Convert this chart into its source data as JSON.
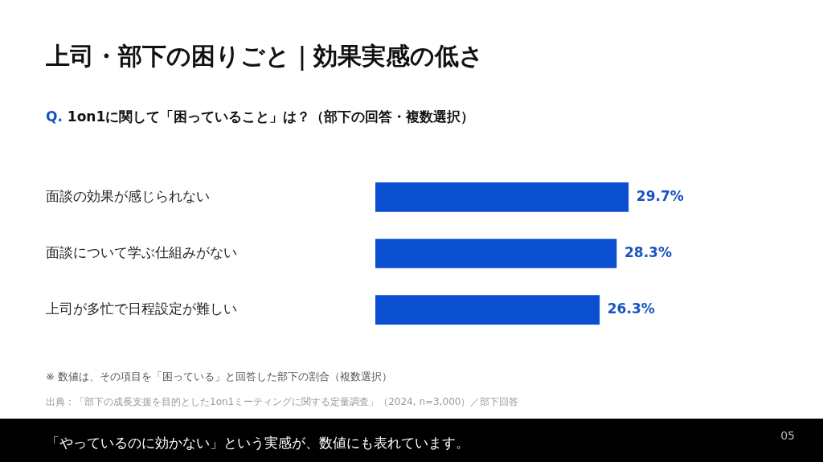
{
  "chart_data": {
    "type": "bar",
    "orientation": "horizontal",
    "title": "上司・部下の困りごと｜効果実感の低さ",
    "subtitle": "Q. 1on1に関して「困っていること」は？（部下の回答・複数選択）",
    "categories": [
      "面談の効果が感じられない",
      "面談について学ぶ仕組みがない",
      "上司が多忙で日程設定が難しい"
    ],
    "values": [
      29.7,
      28.3,
      26.3
    ],
    "color": "#0b4fd1",
    "value_labels": [
      "29.7%",
      "28.3%",
      "26.3%"
    ],
    "tick_labels": "y",
    "legend": false,
    "annotations": [
      "※ 数値は、その項目を「困っている」と回答した部下の割合（複数選択）",
      "出典：「部下の成長支援を目的とした1on1ミーティングに関する定量調査」（2024, n=3,000）／部下回答",
      "「やっているのに効かない」という実感が、数値にも表れています。",
      "05"
    ]
  }
}
